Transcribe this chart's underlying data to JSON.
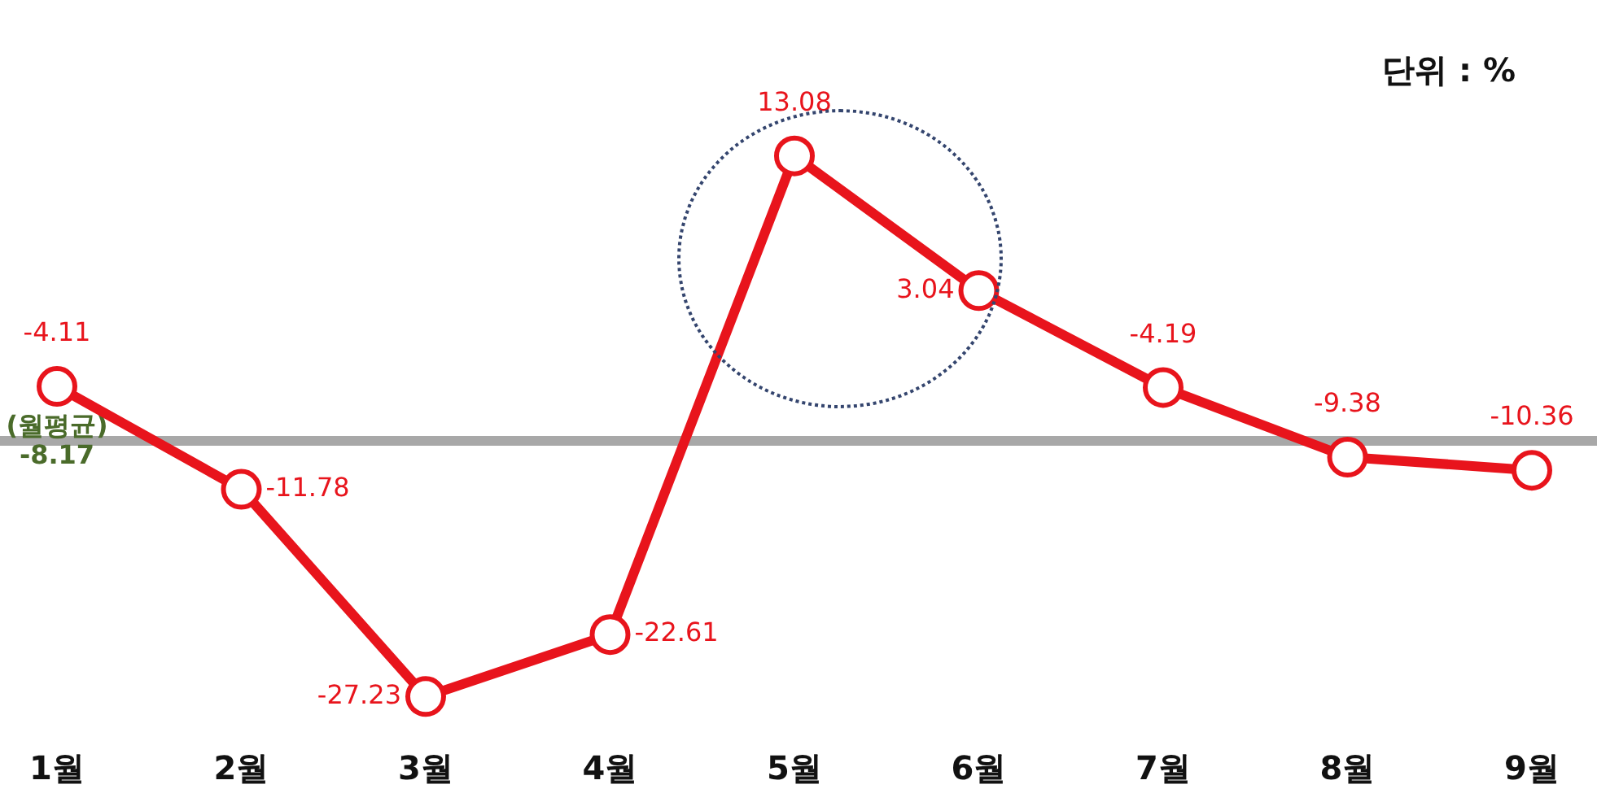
{
  "chart_data": {
    "type": "line",
    "categories": [
      "1월",
      "2월",
      "3월",
      "4월",
      "5월",
      "6월",
      "7월",
      "8월",
      "9월"
    ],
    "series": [
      {
        "color": "#e8141c",
        "values": [
          -4.11,
          -11.78,
          -27.23,
          -22.61,
          13.08,
          3.04,
          -4.19,
          -9.38,
          -10.36
        ]
      }
    ],
    "data_labels": true,
    "marker": "circle",
    "line_style": "solid",
    "grid": false,
    "legend": false,
    "tick_labels": "x",
    "ref_lines": [
      {
        "axis": "y",
        "value": -8.17,
        "label": "(월평균) -8.17",
        "color": "#a8a8a8"
      }
    ],
    "annotations": [
      "단위 : %"
    ]
  }
}
